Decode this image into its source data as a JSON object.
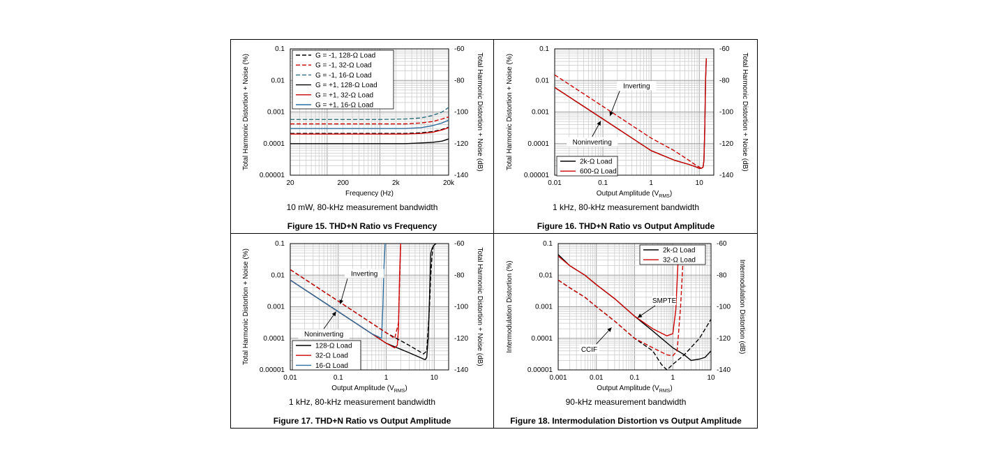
{
  "chart_data": [
    {
      "type": "line",
      "figure": "Figure 15. THD+N Ratio vs Frequency",
      "subtitle": "10 mW, 80-kHz measurement bandwidth",
      "xlabel": "Frequency (Hz)",
      "ylabel": "Total Harmonic Distortion + Noise (%)",
      "y2label": "Total Harmonic Distortion + Noise (dB)",
      "xscale": "log",
      "yscale": "log",
      "xlim": [
        20,
        20000
      ],
      "ylim": [
        1e-05,
        0.1
      ],
      "xticks": [
        20,
        200,
        2000,
        20000
      ],
      "xtick_labels": [
        "20",
        "200",
        "2k",
        "20k"
      ],
      "yticks": [
        1e-05,
        0.0001,
        0.001,
        0.01,
        0.1
      ],
      "ytick_labels": [
        "0.00001",
        "0.0001",
        "0.001",
        "0.01",
        "0.1"
      ],
      "y2tick_labels": [
        "-140",
        "-120",
        "-100",
        "-80",
        "-60"
      ],
      "grid": true,
      "legend": "top-left",
      "series": [
        {
          "name": "G = -1, 128-Ω Load",
          "color": "#000000",
          "dash": true,
          "x": [
            20,
            50,
            100,
            300,
            1000,
            3000,
            6000,
            10000,
            15000,
            20000
          ],
          "y": [
            0.00021,
            0.00021,
            0.00021,
            0.00021,
            0.00021,
            0.00021,
            0.00022,
            0.00024,
            0.00028,
            0.00033
          ]
        },
        {
          "name": "G = -1, 32-Ω Load",
          "color": "#cc0000",
          "dash": true,
          "x": [
            20,
            50,
            100,
            300,
            1000,
            3000,
            6000,
            10000,
            15000,
            20000
          ],
          "y": [
            0.00042,
            0.00042,
            0.00042,
            0.00042,
            0.00042,
            0.00042,
            0.00045,
            0.0005,
            0.0006,
            0.0007
          ]
        },
        {
          "name": "G = -1, 16-Ω Load",
          "color": "#2f6f7f",
          "dash": true,
          "x": [
            20,
            50,
            100,
            300,
            1000,
            3000,
            6000,
            10000,
            15000,
            20000
          ],
          "y": [
            0.00058,
            0.00058,
            0.00058,
            0.00058,
            0.00058,
            0.0006,
            0.00065,
            0.00078,
            0.001,
            0.0014
          ]
        },
        {
          "name": "G = +1, 128-Ω Load",
          "color": "#000000",
          "dash": false,
          "x": [
            20,
            50,
            100,
            300,
            1000,
            3000,
            6000,
            10000,
            15000,
            20000
          ],
          "y": [
            0.0001,
            0.0001,
            0.0001,
            0.0001,
            0.0001,
            0.0001,
            0.000105,
            0.00011,
            0.00012,
            0.00014
          ]
        },
        {
          "name": "G = +1, 32-Ω Load",
          "color": "#cc0000",
          "dash": false,
          "x": [
            20,
            50,
            100,
            300,
            1000,
            3000,
            6000,
            10000,
            15000,
            20000
          ],
          "y": [
            0.0002,
            0.0002,
            0.0002,
            0.0002,
            0.0002,
            0.0002,
            0.00021,
            0.00023,
            0.00027,
            0.00032
          ]
        },
        {
          "name": "G = +1, 16-Ω Load",
          "color": "#2f6f9f",
          "dash": false,
          "x": [
            20,
            50,
            100,
            300,
            1000,
            3000,
            6000,
            10000,
            15000,
            20000
          ],
          "y": [
            0.0003,
            0.0003,
            0.0003,
            0.0003,
            0.0003,
            0.0003,
            0.00032,
            0.00037,
            0.00045,
            0.00055
          ]
        }
      ],
      "annotations": []
    },
    {
      "type": "line",
      "figure": "Figure 16. THD+N Ratio vs Output Amplitude",
      "subtitle": "1 kHz, 80-kHz measurement bandwidth",
      "xlabel": "Output Amplitude (V",
      "xlabel_sub": "RMS",
      "xlabel_end": ")",
      "ylabel": "Total Harmonic Distortion + Noise (%)",
      "y2label": "Total Harmonic Distortion + Noise (dB)",
      "xscale": "log",
      "yscale": "log",
      "xlim": [
        0.01,
        20
      ],
      "ylim": [
        1e-05,
        0.1
      ],
      "xticks": [
        0.01,
        0.1,
        1,
        10
      ],
      "xtick_labels": [
        "0.01",
        "0.1",
        "1",
        "10"
      ],
      "yticks": [
        1e-05,
        0.0001,
        0.001,
        0.01,
        0.1
      ],
      "ytick_labels": [
        "0.00001",
        "0.0001",
        "0.001",
        "0.01",
        "0.1"
      ],
      "y2tick_labels": [
        "-140",
        "-120",
        "-100",
        "-80",
        "-60"
      ],
      "grid": true,
      "legend": "bottom-left",
      "series": [
        {
          "name": "2k-Ω Load",
          "color": "#000000",
          "dash": false,
          "x": [
            0.01,
            0.1,
            1,
            3,
            6,
            8,
            10,
            11,
            12,
            12.5,
            13,
            13.5,
            14
          ],
          "y": [
            0.006,
            0.0006,
            6e-05,
            3e-05,
            2.2e-05,
            1.9e-05,
            1.65e-05,
            1.65e-05,
            1.8e-05,
            3e-05,
            0.0003,
            0.01,
            0.05
          ]
        },
        {
          "name": "600-Ω Load",
          "color": "#cc0000",
          "dash": false,
          "x": [
            0.01,
            0.1,
            1,
            3,
            6,
            8,
            10,
            11,
            12,
            12.5,
            13,
            13.5,
            14
          ],
          "y": [
            0.006,
            0.0006,
            6e-05,
            3e-05,
            2.2e-05,
            1.9e-05,
            1.65e-05,
            1.65e-05,
            1.8e-05,
            3e-05,
            0.0003,
            0.01,
            0.05
          ]
        },
        {
          "name": "",
          "color": "#cc0000",
          "dash": true,
          "x": [
            0.01,
            0.1,
            1,
            3,
            6,
            8,
            10,
            11,
            11.5
          ],
          "y": [
            0.015,
            0.0015,
            0.00015,
            6e-05,
            3e-05,
            2.2e-05,
            1.8e-05,
            1.65e-05,
            1.6e-05
          ]
        }
      ],
      "annotations": [
        {
          "text": "Inverting",
          "x": 0.5,
          "y": 0.006,
          "arrow_to": [
            0.14,
            0.00075
          ]
        },
        {
          "text": "Noninverting",
          "x": 0.06,
          "y": 0.0001,
          "arrow_to": [
            0.09,
            0.00052
          ]
        }
      ]
    },
    {
      "type": "line",
      "figure": "Figure 17. THD+N Ratio vs Output Amplitude",
      "subtitle": "1 kHz, 80-kHz measurement bandwidth",
      "xlabel": "Output Amplitude (V",
      "xlabel_sub": "RMS",
      "xlabel_end": ")",
      "ylabel": "Total Harmonic Distortion + Noise (%)",
      "y2label": "Total Harmonic Distortion + Noise (dB)",
      "xscale": "log",
      "yscale": "log",
      "xlim": [
        0.01,
        20
      ],
      "ylim": [
        1e-05,
        0.1
      ],
      "xticks": [
        0.01,
        0.1,
        1,
        10
      ],
      "xtick_labels": [
        "0.01",
        "0.1",
        "1",
        "10"
      ],
      "yticks": [
        1e-05,
        0.0001,
        0.001,
        0.01,
        0.1
      ],
      "ytick_labels": [
        "0.00001",
        "0.0001",
        "0.001",
        "0.01",
        "0.1"
      ],
      "y2tick_labels": [
        "-140",
        "-120",
        "-100",
        "-80",
        "-60"
      ],
      "grid": true,
      "legend": "bottom-left",
      "series": [
        {
          "name": "128-Ω Load",
          "color": "#000000",
          "dash": false,
          "x": [
            0.01,
            0.1,
            1,
            3,
            5,
            6,
            6.5,
            7,
            7.5,
            8,
            8.5,
            9,
            10,
            11
          ],
          "y": [
            0.007,
            0.0007,
            7e-05,
            3.5e-05,
            2.5e-05,
            2.2e-05,
            2.1e-05,
            2.5e-05,
            0.0001,
            0.002,
            0.05,
            0.07,
            0.09,
            0.1
          ]
        },
        {
          "name": "32-Ω Load",
          "color": "#cc0000",
          "dash": false,
          "x": [
            0.01,
            0.1,
            1,
            1.5,
            1.7,
            1.8,
            1.9,
            2.0
          ],
          "y": [
            0.007,
            0.0007,
            7e-05,
            5e-05,
            6e-05,
            0.0002,
            0.01,
            0.1
          ]
        },
        {
          "name": "16-Ω Load",
          "color": "#2f6f9f",
          "dash": false,
          "x": [
            0.01,
            0.1,
            0.5,
            0.8,
            0.85,
            0.9,
            0.95
          ],
          "y": [
            0.007,
            0.0007,
            0.00014,
            0.0001,
            0.001,
            0.02,
            0.1
          ]
        },
        {
          "name": "",
          "color": "#000000",
          "dash": true,
          "x": [
            0.01,
            0.1,
            1,
            3,
            5,
            6,
            7,
            8,
            8.5,
            9,
            9.5,
            10
          ],
          "y": [
            0.015,
            0.0015,
            0.00015,
            6e-05,
            3.8e-05,
            3.2e-05,
            4e-05,
            0.001,
            0.01,
            0.04,
            0.08,
            0.1
          ]
        },
        {
          "name": "",
          "color": "#cc0000",
          "dash": true,
          "x": [
            0.01,
            0.1,
            1,
            1.5,
            1.8,
            2.0
          ],
          "y": [
            0.015,
            0.0015,
            0.00015,
            0.0001,
            0.0003,
            0.1
          ]
        }
      ],
      "annotations": [
        {
          "text": "Inverting",
          "x": 0.35,
          "y": 0.01,
          "arrow_to": [
            0.11,
            0.0012
          ]
        },
        {
          "text": "Noninverting",
          "x": 0.05,
          "y": 0.00012,
          "arrow_to": [
            0.09,
            0.0007
          ]
        }
      ]
    },
    {
      "type": "line",
      "figure": "Figure 18. Intermodulation Distortion vs Output Amplitude",
      "subtitle": "90-kHz measurement bandwidth",
      "xlabel": "Output Amplitude (V",
      "xlabel_sub": "RMS",
      "xlabel_end": ")",
      "ylabel": "Intermodulation Distortion (%)",
      "y2label": "Intermodulation Distortion (dB)",
      "xscale": "log",
      "yscale": "log",
      "xlim": [
        0.001,
        10
      ],
      "ylim": [
        1e-05,
        0.1
      ],
      "xticks": [
        0.001,
        0.01,
        0.1,
        1,
        10
      ],
      "xtick_labels": [
        "0.001",
        "0.01",
        "0.1",
        "1",
        "10"
      ],
      "yticks": [
        1e-05,
        0.0001,
        0.001,
        0.01,
        0.1
      ],
      "ytick_labels": [
        "0.00001",
        "0.0001",
        "0.001",
        "0.01",
        "0.1"
      ],
      "y2tick_labels": [
        "-140",
        "-120",
        "-100",
        "-80",
        "-60"
      ],
      "grid": true,
      "legend": "top-right",
      "series": [
        {
          "name": "2k-Ω Load",
          "color": "#000000",
          "dash": false,
          "x": [
            0.001,
            0.002,
            0.005,
            0.01,
            0.03,
            0.1,
            0.3,
            1,
            2,
            3,
            5,
            7,
            10
          ],
          "y": [
            0.045,
            0.02,
            0.01,
            0.005,
            0.0018,
            0.0005,
            0.00017,
            5e-05,
            3e-05,
            2e-05,
            2.2e-05,
            2.5e-05,
            4e-05
          ]
        },
        {
          "name": "32-Ω Load",
          "color": "#cc0000",
          "dash": false,
          "x": [
            0.001,
            0.002,
            0.005,
            0.01,
            0.03,
            0.1,
            0.3,
            0.7,
            1.0,
            1.2,
            1.4
          ],
          "y": [
            0.04,
            0.02,
            0.01,
            0.005,
            0.0018,
            0.0005,
            0.0002,
            0.00012,
            0.00014,
            0.0008,
            0.05
          ]
        },
        {
          "name": "",
          "color": "#000000",
          "dash": true,
          "x": [
            0.001,
            0.002,
            0.005,
            0.01,
            0.03,
            0.1,
            0.3,
            0.5,
            0.7,
            1,
            2,
            5,
            10
          ],
          "y": [
            0.007,
            0.004,
            0.002,
            0.001,
            0.00035,
            0.0001,
            4e-05,
            1.5e-05,
            1e-05,
            1.5e-05,
            3e-05,
            0.0001,
            0.0004
          ]
        },
        {
          "name": "",
          "color": "#cc0000",
          "dash": true,
          "x": [
            0.001,
            0.002,
            0.005,
            0.01,
            0.03,
            0.1,
            0.3,
            0.7,
            1,
            1.3,
            1.6,
            1.9
          ],
          "y": [
            0.007,
            0.004,
            0.002,
            0.001,
            0.00035,
            0.0001,
            5e-05,
            3e-05,
            2.8e-05,
            4e-05,
            0.001,
            0.05
          ]
        }
      ],
      "annotations": [
        {
          "text": "SMPTE",
          "x": 0.6,
          "y": 0.0014,
          "arrow_to": [
            0.12,
            0.00045
          ]
        },
        {
          "text": "CCIF",
          "x": 0.0065,
          "y": 4e-05,
          "arrow_to": [
            0.025,
            0.00022
          ]
        }
      ]
    }
  ]
}
